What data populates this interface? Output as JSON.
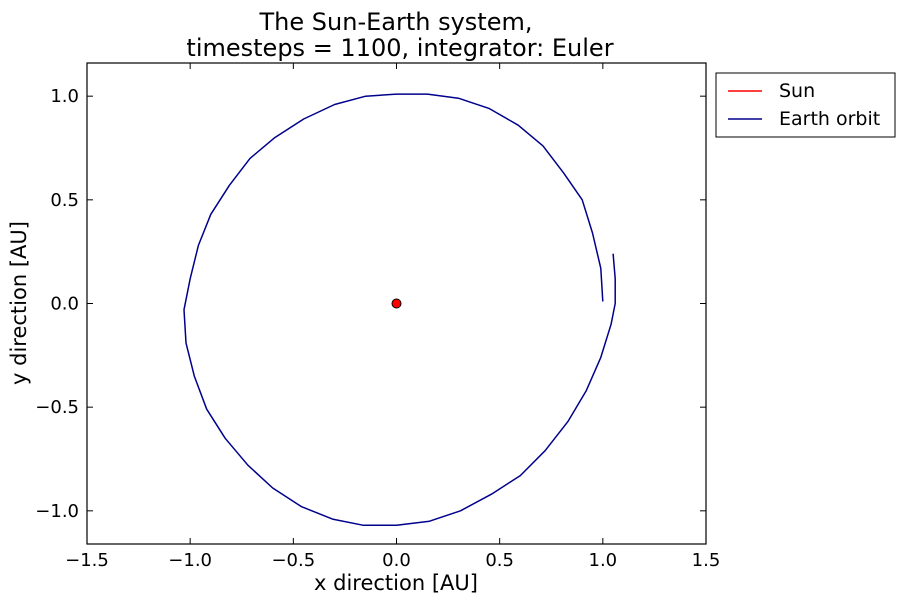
{
  "chart_data": {
    "type": "line",
    "title": [
      "The Sun-Earth system,",
      "timesteps = 1100, integrator: Euler"
    ],
    "xlabel": "x direction [AU]",
    "ylabel": "y direction [AU]",
    "xlim": [
      -1.5,
      1.5
    ],
    "ylim": [
      -1.16,
      1.16
    ],
    "x_ticks": [
      -1.5,
      -1.0,
      -0.5,
      0.0,
      0.5,
      1.0,
      1.5
    ],
    "x_tick_labels": [
      "−1.5",
      "−1.0",
      "−0.5",
      "0.0",
      "0.5",
      "1.0",
      "1.5"
    ],
    "y_ticks": [
      -1.0,
      -0.5,
      0.0,
      0.5,
      1.0
    ],
    "y_tick_labels": [
      "−1.0",
      "−0.5",
      "0.0",
      "0.5",
      "1.0"
    ],
    "grid": false,
    "legend_position": "outside-upper-right",
    "series": [
      {
        "name": "Sun",
        "color": "#ff0000",
        "marker": "circle",
        "x": [
          0.0
        ],
        "y": [
          0.0
        ]
      },
      {
        "name": "Earth orbit",
        "color": "#00008b",
        "x": [
          1.0,
          0.99,
          0.95,
          0.9,
          0.81,
          0.71,
          0.59,
          0.45,
          0.3,
          0.15,
          0.0,
          -0.15,
          -0.3,
          -0.45,
          -0.59,
          -0.71,
          -0.81,
          -0.9,
          -0.96,
          -1.0,
          -1.03,
          -1.02,
          -0.98,
          -0.92,
          -0.83,
          -0.72,
          -0.6,
          -0.46,
          -0.31,
          -0.16,
          0.0,
          0.16,
          0.31,
          0.46,
          0.6,
          0.72,
          0.83,
          0.92,
          0.99,
          1.04,
          1.06,
          1.06,
          1.05
        ],
        "y": [
          0.01,
          0.17,
          0.34,
          0.5,
          0.63,
          0.76,
          0.86,
          0.94,
          0.99,
          1.01,
          1.01,
          1.0,
          0.96,
          0.89,
          0.8,
          0.7,
          0.57,
          0.43,
          0.28,
          0.12,
          -0.03,
          -0.19,
          -0.35,
          -0.51,
          -0.65,
          -0.78,
          -0.89,
          -0.98,
          -1.04,
          -1.07,
          -1.07,
          -1.05,
          -1.0,
          -0.92,
          -0.83,
          -0.71,
          -0.57,
          -0.42,
          -0.26,
          -0.1,
          0.0,
          0.12,
          0.24
        ]
      }
    ]
  }
}
